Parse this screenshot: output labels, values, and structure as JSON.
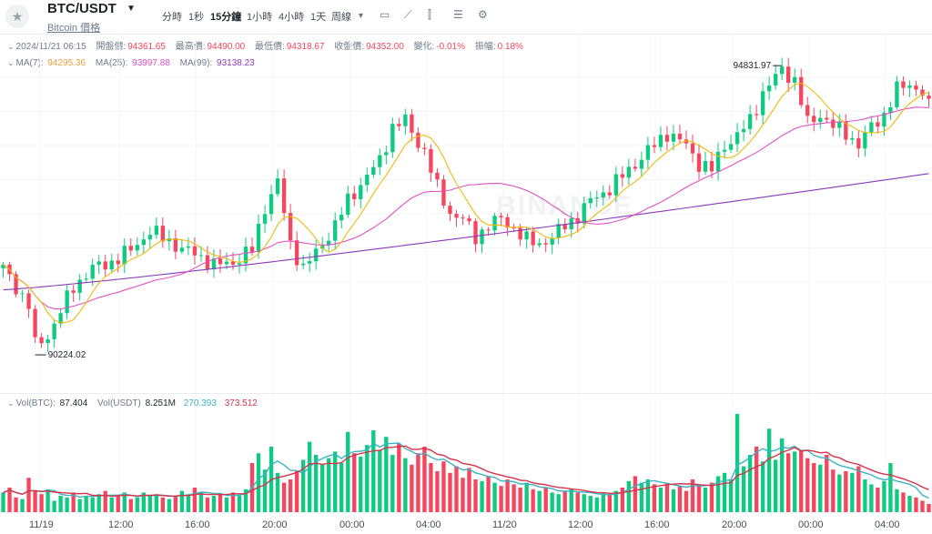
{
  "header": {
    "pair": "BTC/USDT",
    "subtitle": "Bitcoin 價格",
    "timeframes": [
      "分時",
      "1秒",
      "15分鐘",
      "1小時",
      "4小時",
      "1天",
      "周線"
    ],
    "active_timeframe": "15分鐘"
  },
  "ohlc": {
    "datetime": "2024/11/21 06:15",
    "open_label": "開盤價:",
    "open": "94361.65",
    "high_label": "最高價:",
    "high": "94490.00",
    "low_label": "最低價:",
    "low": "94318.67",
    "close_label": "收盤價:",
    "close": "94352.00",
    "change_label": "變化:",
    "change": "-0.01%",
    "amp_label": "振幅:",
    "amp": "0.18%"
  },
  "ma": {
    "ma7_label": "MA(7):",
    "ma7": "94295.36",
    "ma25_label": "MA(25):",
    "ma25": "93997.88",
    "ma99_label": "MA(99):",
    "ma99": "93138.23"
  },
  "vol": {
    "btc_label": "Vol(BTC):",
    "btc": "87.404",
    "usdt_label": "Vol(USDT)",
    "usdt": "8.251M",
    "ma_short": "270.393",
    "ma_long": "373.512"
  },
  "watermark": "BINANCE",
  "chart_data": {
    "type": "candlestick",
    "title": "BTC/USDT 15m",
    "ylim": [
      89900,
      95100
    ],
    "x_tick_labels": [
      "11/19",
      "12:00",
      "16:00",
      "20:00",
      "00:00",
      "04:00",
      "11/20",
      "12:00",
      "16:00",
      "20:00",
      "00:00",
      "04:00"
    ],
    "annotations": {
      "high_marker": "94831.97",
      "low_marker": "90224.02"
    },
    "price_anchors": [
      [
        0,
        91600
      ],
      [
        2,
        91300
      ],
      [
        4,
        91000
      ],
      [
        5,
        90350
      ],
      [
        7,
        90500
      ],
      [
        9,
        90900
      ],
      [
        11,
        91300
      ],
      [
        14,
        91600
      ],
      [
        17,
        91700
      ],
      [
        20,
        91900
      ],
      [
        23,
        92200
      ],
      [
        26,
        92050
      ],
      [
        28,
        91900
      ],
      [
        30,
        91850
      ],
      [
        33,
        91650
      ],
      [
        36,
        91700
      ],
      [
        39,
        91900
      ],
      [
        41,
        92600
      ],
      [
        43,
        93000
      ],
      [
        45,
        92000
      ],
      [
        47,
        91600
      ],
      [
        49,
        91850
      ],
      [
        52,
        92300
      ],
      [
        54,
        92700
      ],
      [
        57,
        93100
      ],
      [
        59,
        93350
      ],
      [
        61,
        93900
      ],
      [
        63,
        94000
      ],
      [
        64,
        93800
      ],
      [
        66,
        93500
      ],
      [
        68,
        92900
      ],
      [
        70,
        92500
      ],
      [
        72,
        92400
      ],
      [
        74,
        92100
      ],
      [
        76,
        92300
      ],
      [
        78,
        92400
      ],
      [
        80,
        92250
      ],
      [
        82,
        92050
      ],
      [
        84,
        92000
      ],
      [
        86,
        92100
      ],
      [
        88,
        92300
      ],
      [
        90,
        92450
      ],
      [
        92,
        92700
      ],
      [
        95,
        92900
      ],
      [
        98,
        93200
      ],
      [
        101,
        93500
      ],
      [
        104,
        93800
      ],
      [
        107,
        93600
      ],
      [
        109,
        93300
      ],
      [
        111,
        93200
      ],
      [
        113,
        93600
      ],
      [
        115,
        93750
      ],
      [
        117,
        94000
      ],
      [
        119,
        94450
      ],
      [
        121,
        94700
      ],
      [
        122,
        94831.97
      ],
      [
        124,
        94650
      ],
      [
        126,
        93950
      ],
      [
        128,
        94100
      ],
      [
        130,
        93900
      ],
      [
        132,
        93800
      ],
      [
        134,
        93600
      ],
      [
        136,
        93900
      ],
      [
        138,
        94100
      ],
      [
        140,
        94500
      ],
      [
        142,
        94600
      ],
      [
        144,
        94450
      ],
      [
        145,
        94352
      ]
    ],
    "volume": [
      24,
      30,
      18,
      16,
      42,
      26,
      22,
      28,
      14,
      20,
      18,
      24,
      16,
      20,
      18,
      22,
      26,
      18,
      20,
      24,
      16,
      18,
      24,
      20,
      22,
      18,
      16,
      20,
      26,
      22,
      30,
      24,
      18,
      20,
      22,
      18,
      24,
      20,
      28,
      60,
      72,
      52,
      80,
      48,
      36,
      40,
      50,
      64,
      86,
      70,
      58,
      66,
      74,
      60,
      98,
      72,
      68,
      82,
      100,
      76,
      92,
      70,
      84,
      66,
      58,
      72,
      80,
      60,
      50,
      62,
      48,
      56,
      42,
      54,
      40,
      38,
      44,
      36,
      32,
      40,
      34,
      30,
      36,
      28,
      26,
      30,
      24,
      22,
      26,
      28,
      24,
      22,
      20,
      18,
      24,
      22,
      26,
      30,
      38,
      44,
      36,
      40,
      34,
      30,
      36,
      28,
      32,
      26,
      40,
      34,
      30,
      36,
      44,
      48,
      40,
      120,
      56,
      70,
      80,
      62,
      102,
      64,
      90,
      72,
      74,
      76,
      66,
      60,
      58,
      70,
      52,
      46,
      50,
      48,
      56,
      40,
      34,
      30,
      38,
      60,
      28,
      24,
      20,
      18,
      14,
      10
    ]
  }
}
